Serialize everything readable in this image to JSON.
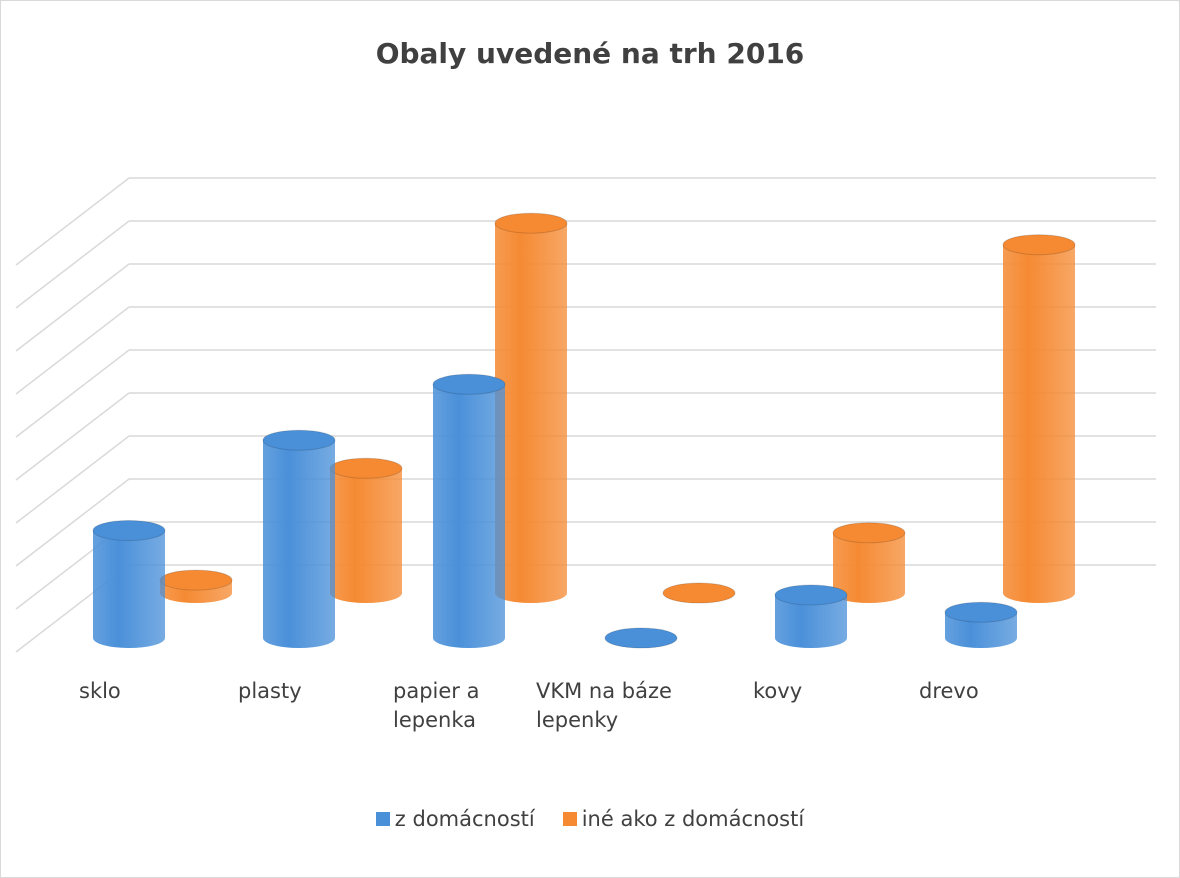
{
  "chart_data": {
    "type": "bar3d_cylinder",
    "title": "Obaly uvedené na trh 2016",
    "categories": [
      "sklo",
      "plasty",
      "papier a lepenka",
      "VKM na báze lepenky",
      "kovy",
      "drevo"
    ],
    "series": [
      {
        "name": "z domácností",
        "color": "#4a90d9",
        "values": [
          2.5,
          4.6,
          5.9,
          0,
          1.0,
          0.6
        ]
      },
      {
        "name": "iné ako z domácností",
        "color": "#f58a33",
        "values": [
          0.3,
          2.9,
          8.6,
          0,
          1.4,
          8.1
        ]
      }
    ],
    "ylim": [
      0,
      9
    ],
    "yticks": [
      0,
      1,
      2,
      3,
      4,
      5,
      6,
      7,
      8,
      9
    ],
    "grid": true,
    "legend": "bottom"
  }
}
